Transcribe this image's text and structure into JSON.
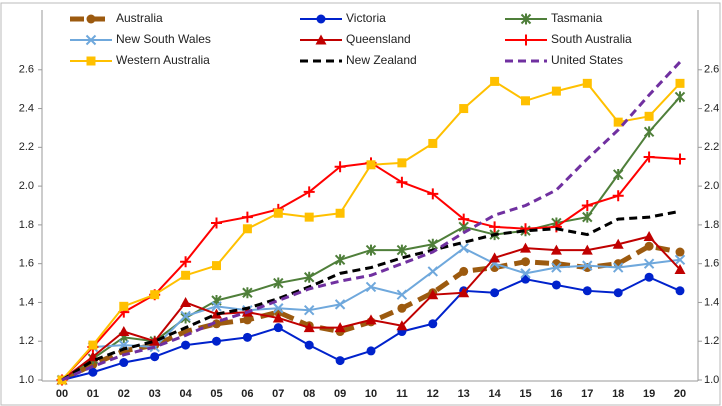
{
  "chart_data": {
    "type": "line",
    "categories": [
      "00",
      "01",
      "02",
      "03",
      "04",
      "05",
      "06",
      "07",
      "08",
      "09",
      "10",
      "11",
      "12",
      "13",
      "14",
      "15",
      "16",
      "17",
      "18",
      "19",
      "20"
    ],
    "ylim": [
      1.0,
      2.8
    ],
    "yticks": [
      {
        "value": 1,
        "label": "1.0"
      },
      {
        "value": 1.2,
        "label": "1.2"
      },
      {
        "value": 1.4,
        "label": "1.4"
      },
      {
        "value": 1.6,
        "label": "1.6"
      },
      {
        "value": 1.8,
        "label": "1.8"
      },
      {
        "value": 2,
        "label": "2.0"
      },
      {
        "value": 2.2,
        "label": "2.2"
      },
      {
        "value": 2.4,
        "label": "2.4"
      },
      {
        "value": 2.6,
        "label": "2.6"
      }
    ],
    "mirror_y_axis": true,
    "grid": false,
    "series": [
      {
        "name": "Australia",
        "color": "#9c5a0f",
        "marker": "circle",
        "dash": "thick-dash",
        "values": [
          1.0,
          1.08,
          1.15,
          1.18,
          1.25,
          1.29,
          1.31,
          1.35,
          1.28,
          1.25,
          1.3,
          1.37,
          1.45,
          1.56,
          1.58,
          1.61,
          1.6,
          1.58,
          1.6,
          1.69,
          1.66
        ]
      },
      {
        "name": "Victoria",
        "color": "#0022cc",
        "marker": "circle",
        "dash": "solid",
        "values": [
          1.0,
          1.04,
          1.09,
          1.12,
          1.18,
          1.2,
          1.22,
          1.27,
          1.18,
          1.1,
          1.15,
          1.25,
          1.29,
          1.46,
          1.45,
          1.52,
          1.49,
          1.46,
          1.45,
          1.53,
          1.46
        ]
      },
      {
        "name": "Tasmania",
        "color": "#4f7f3a",
        "marker": "star",
        "dash": "solid",
        "values": [
          1.0,
          1.11,
          1.22,
          1.2,
          1.32,
          1.41,
          1.45,
          1.5,
          1.53,
          1.62,
          1.67,
          1.67,
          1.7,
          1.79,
          1.75,
          1.77,
          1.81,
          1.84,
          2.06,
          2.28,
          2.46
        ]
      },
      {
        "name": "New South Wales",
        "color": "#6fa8dc",
        "marker": "x",
        "dash": "solid",
        "values": [
          1.0,
          1.17,
          1.18,
          1.17,
          1.33,
          1.38,
          1.36,
          1.37,
          1.36,
          1.39,
          1.48,
          1.44,
          1.56,
          1.68,
          1.6,
          1.55,
          1.58,
          1.59,
          1.58,
          1.6,
          1.62
        ]
      },
      {
        "name": "Queensland",
        "color": "#c00000",
        "marker": "triangle",
        "dash": "solid",
        "values": [
          1.0,
          1.12,
          1.25,
          1.2,
          1.4,
          1.34,
          1.35,
          1.32,
          1.27,
          1.27,
          1.31,
          1.28,
          1.44,
          1.45,
          1.63,
          1.68,
          1.67,
          1.67,
          1.7,
          1.74,
          1.57
        ]
      },
      {
        "name": "South Australia",
        "color": "#ff0000",
        "marker": "plus",
        "dash": "solid",
        "values": [
          1.0,
          1.17,
          1.35,
          1.44,
          1.61,
          1.81,
          1.84,
          1.88,
          1.97,
          2.1,
          2.12,
          2.02,
          1.96,
          1.83,
          1.79,
          1.78,
          1.79,
          1.9,
          1.95,
          2.15,
          2.14
        ]
      },
      {
        "name": "Western Australia",
        "color": "#ffc000",
        "marker": "square",
        "dash": "solid",
        "values": [
          1.0,
          1.18,
          1.38,
          1.44,
          1.54,
          1.59,
          1.78,
          1.86,
          1.84,
          1.86,
          2.11,
          2.12,
          2.22,
          2.4,
          2.54,
          2.44,
          2.49,
          2.53,
          2.33,
          2.36,
          2.53
        ]
      },
      {
        "name": "New Zealand",
        "color": "#000000",
        "marker": "none",
        "dash": "dash",
        "values": [
          1.0,
          1.1,
          1.16,
          1.2,
          1.27,
          1.34,
          1.37,
          1.42,
          1.48,
          1.55,
          1.58,
          1.63,
          1.67,
          1.71,
          1.75,
          1.77,
          1.78,
          1.75,
          1.83,
          1.84,
          1.87
        ]
      },
      {
        "name": "United States",
        "color": "#7030a0",
        "marker": "none",
        "dash": "dash",
        "values": [
          1.0,
          1.07,
          1.13,
          1.17,
          1.23,
          1.3,
          1.35,
          1.41,
          1.47,
          1.51,
          1.54,
          1.6,
          1.66,
          1.76,
          1.85,
          1.9,
          1.98,
          2.14,
          2.29,
          2.47,
          2.64
        ]
      }
    ]
  }
}
